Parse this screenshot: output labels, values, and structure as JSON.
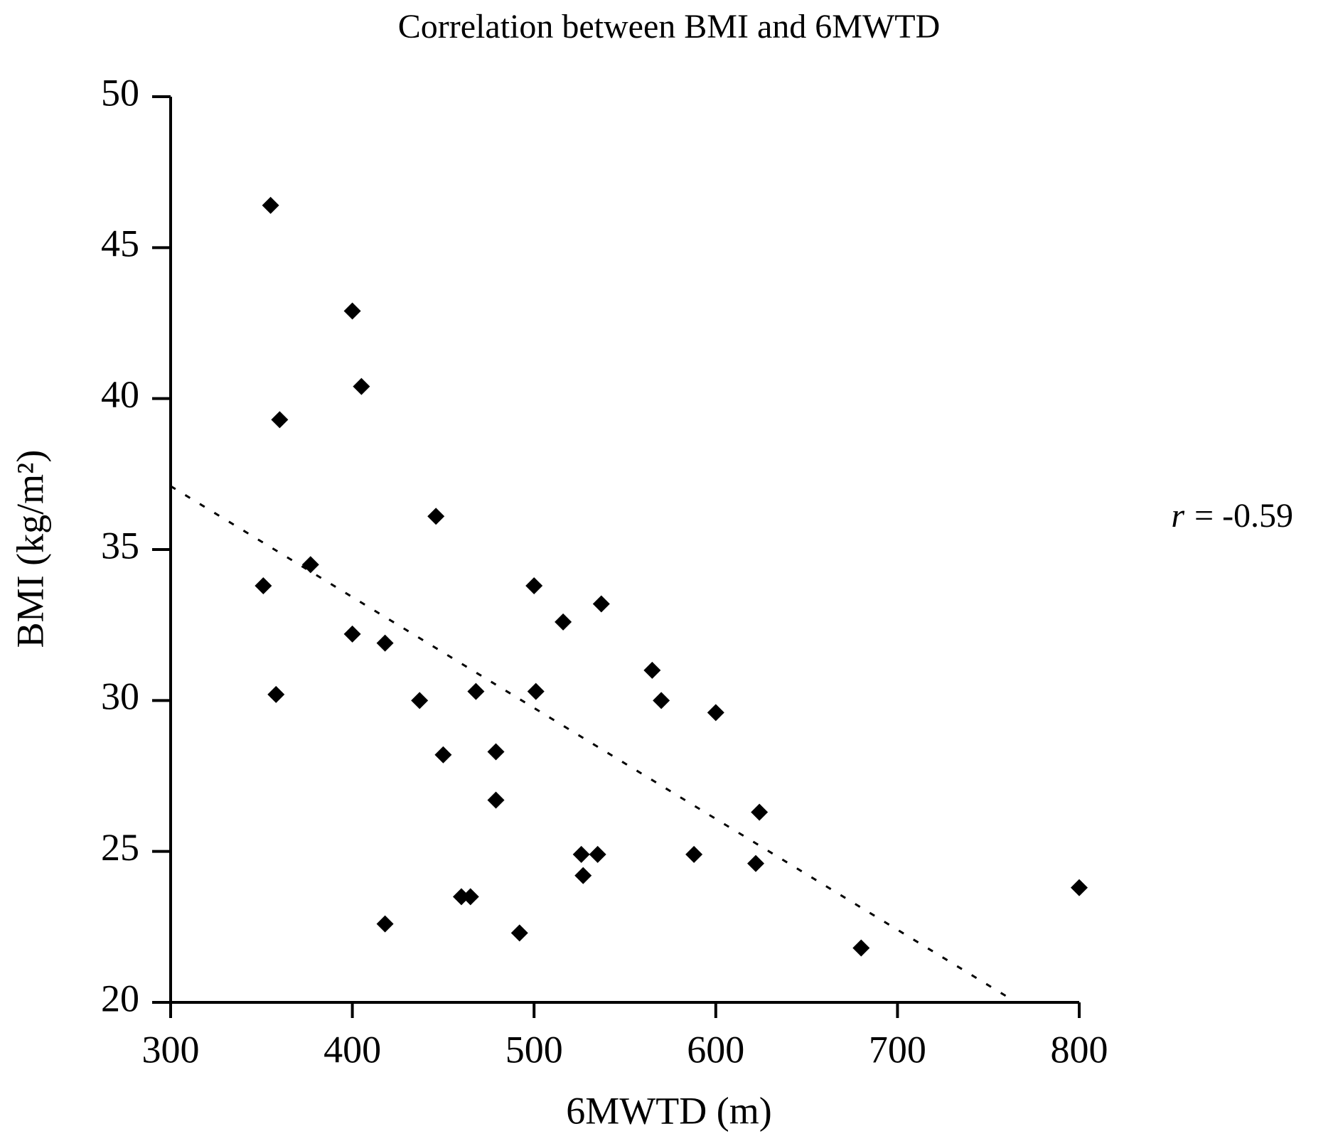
{
  "chart_data": {
    "type": "scatter",
    "title": "Correlation between BMI and 6MWTD",
    "x_label": "6MWTD (m)",
    "y_label": "BMI (kg/m²)",
    "series": [
      {
        "color": "#000000",
        "x": [
          355,
          400,
          405,
          360,
          446,
          377,
          351,
          500,
          537,
          516,
          400,
          418,
          565,
          358,
          468,
          501,
          437,
          570,
          600,
          450,
          479,
          479,
          624,
          526,
          535,
          588,
          622,
          527,
          460,
          465,
          800,
          418,
          492,
          680
        ],
        "values": [
          46.4,
          42.9,
          40.4,
          39.3,
          36.1,
          34.5,
          33.8,
          33.8,
          33.2,
          32.6,
          32.2,
          31.9,
          31.0,
          30.2,
          30.3,
          30.3,
          30.0,
          30.0,
          29.6,
          28.2,
          28.3,
          26.7,
          26.3,
          24.9,
          24.9,
          24.9,
          24.6,
          24.2,
          23.5,
          23.5,
          23.8,
          22.6,
          22.3,
          21.8
        ]
      }
    ],
    "trendline": {
      "x": [
        300,
        760
      ],
      "values": [
        37.1,
        20.2
      ]
    },
    "annotation": {
      "symbol": "r",
      "text": "= -0.59"
    },
    "xlim": [
      300,
      800
    ],
    "xticks": [
      300,
      400,
      500,
      600,
      700,
      800
    ],
    "ylim": [
      20,
      50
    ],
    "yticks": [
      20,
      25,
      30,
      35,
      40,
      45,
      50
    ]
  }
}
